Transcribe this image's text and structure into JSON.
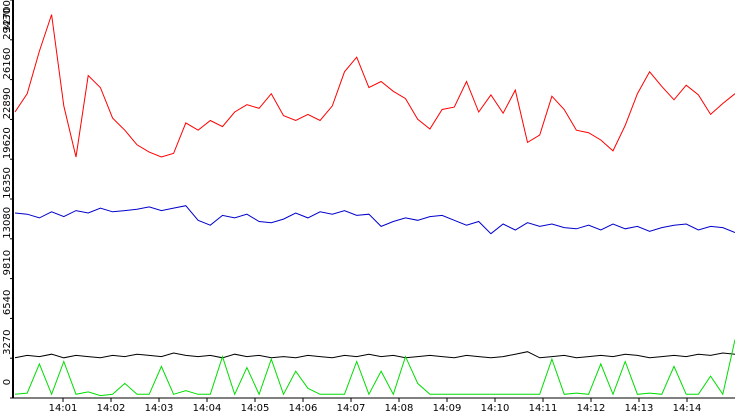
{
  "chart_data": {
    "type": "line",
    "xlim": [
      0,
      15
    ],
    "xticks": [
      {
        "value": 1,
        "label": "14:01"
      },
      {
        "value": 2,
        "label": "14:02"
      },
      {
        "value": 3,
        "label": "14:03"
      },
      {
        "value": 4,
        "label": "14:04"
      },
      {
        "value": 5,
        "label": "14:05"
      },
      {
        "value": 6,
        "label": "14:06"
      },
      {
        "value": 7,
        "label": "14:07"
      },
      {
        "value": 8,
        "label": "14:08"
      },
      {
        "value": 9,
        "label": "14:09"
      },
      {
        "value": 10,
        "label": "14:10"
      },
      {
        "value": 11,
        "label": "14:11"
      },
      {
        "value": 12,
        "label": "14:12"
      },
      {
        "value": 13,
        "label": "14:13"
      },
      {
        "value": 14,
        "label": "14:14"
      }
    ],
    "ylim": [
      0,
      32700
    ],
    "yticks": [
      0,
      3270,
      6540,
      9810,
      13080,
      16350,
      19620,
      22890,
      26160,
      29430,
      32700
    ],
    "series": [
      {
        "color": "#ff0000",
        "values": [
          23500,
          25000,
          28500,
          31500,
          24000,
          19800,
          26500,
          25500,
          23000,
          22000,
          20800,
          20200,
          19800,
          20100,
          22600,
          22000,
          22800,
          22300,
          23500,
          24100,
          23800,
          25000,
          23200,
          22800,
          23300,
          22800,
          24000,
          26800,
          28000,
          25500,
          26000,
          25200,
          24600,
          22900,
          22100,
          23700,
          23900,
          26000,
          23500,
          24900,
          23400,
          25300,
          21000,
          21600,
          24800,
          23700,
          22000,
          21800,
          21200,
          20300,
          22400,
          25000,
          26800,
          25600,
          24500,
          25700,
          24900,
          23300,
          24200,
          25000
        ]
      },
      {
        "color": "#0000cc",
        "values": [
          15200,
          15100,
          14800,
          15300,
          14900,
          15400,
          15200,
          15600,
          15300,
          15400,
          15500,
          15700,
          15400,
          15600,
          15800,
          14600,
          14200,
          15000,
          14800,
          15100,
          14500,
          14400,
          14700,
          15200,
          14800,
          15300,
          15100,
          15400,
          15000,
          15100,
          14100,
          14500,
          14800,
          14600,
          14900,
          15000,
          14600,
          14200,
          14500,
          13500,
          14300,
          13800,
          14400,
          14100,
          14300,
          14000,
          13900,
          14200,
          13800,
          14300,
          13900,
          14100,
          13700,
          14000,
          14200,
          14300,
          13800,
          14100,
          14000,
          13600
        ]
      },
      {
        "color": "#000000",
        "values": [
          3300,
          3500,
          3400,
          3600,
          3300,
          3500,
          3400,
          3300,
          3500,
          3400,
          3600,
          3500,
          3400,
          3700,
          3500,
          3400,
          3500,
          3300,
          3600,
          3400,
          3500,
          3300,
          3400,
          3300,
          3500,
          3400,
          3300,
          3500,
          3400,
          3600,
          3400,
          3500,
          3300,
          3400,
          3500,
          3400,
          3300,
          3500,
          3400,
          3300,
          3400,
          3600,
          3800,
          3300,
          3400,
          3500,
          3300,
          3400,
          3500,
          3400,
          3600,
          3500,
          3300,
          3400,
          3500,
          3400,
          3600,
          3500,
          3700,
          3600
        ]
      },
      {
        "color": "#00dd00",
        "values": [
          300,
          400,
          2800,
          300,
          3000,
          300,
          500,
          200,
          300,
          1200,
          300,
          300,
          2600,
          300,
          600,
          300,
          300,
          3400,
          300,
          2500,
          300,
          3200,
          300,
          2200,
          800,
          300,
          300,
          300,
          3000,
          300,
          2200,
          300,
          3400,
          1200,
          300,
          300,
          300,
          300,
          300,
          300,
          300,
          300,
          300,
          300,
          3200,
          300,
          400,
          300,
          2800,
          300,
          3000,
          300,
          400,
          300,
          2600,
          300,
          300,
          1800,
          300,
          4800
        ]
      }
    ]
  }
}
